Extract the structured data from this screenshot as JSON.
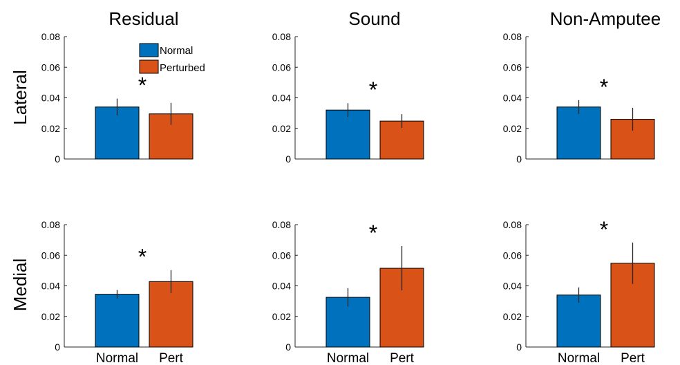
{
  "figure": {
    "column_titles": [
      "Residual",
      "Sound",
      "Non-Amputee"
    ],
    "row_labels": [
      "Lateral",
      "Medial"
    ],
    "legend": {
      "position": "top-left of first panel",
      "entries": [
        "Normal",
        "Perturbed"
      ]
    },
    "colors": {
      "normal": "#0072bd",
      "perturbed": "#d95319",
      "axis": "#262626"
    }
  },
  "chart_data": [
    {
      "type": "bar",
      "panel": "Lateral - Residual",
      "categories": [
        "Normal",
        "Pert"
      ],
      "values": [
        0.034,
        0.0295
      ],
      "error": [
        0.0055,
        0.0072
      ],
      "ylim": [
        0,
        0.08
      ],
      "yticks": [
        "0",
        "0.02",
        "0.04",
        "0.06",
        "0.08"
      ],
      "significance": "*",
      "show_xticklabels": false
    },
    {
      "type": "bar",
      "panel": "Lateral - Sound",
      "categories": [
        "Normal",
        "Pert"
      ],
      "values": [
        0.032,
        0.0248
      ],
      "error": [
        0.0045,
        0.0045
      ],
      "ylim": [
        0,
        0.08
      ],
      "yticks": [
        "0",
        "0.02",
        "0.04",
        "0.06",
        "0.08"
      ],
      "significance": "*",
      "show_xticklabels": false
    },
    {
      "type": "bar",
      "panel": "Lateral - Non-Amputee",
      "categories": [
        "Normal",
        "Pert"
      ],
      "values": [
        0.034,
        0.026
      ],
      "error": [
        0.0045,
        0.0075
      ],
      "ylim": [
        0,
        0.08
      ],
      "yticks": [
        "0",
        "0.02",
        "0.04",
        "0.06",
        "0.08"
      ],
      "significance": "*",
      "show_xticklabels": false
    },
    {
      "type": "bar",
      "panel": "Medial - Residual",
      "categories": [
        "Normal",
        "Pert"
      ],
      "values": [
        0.0345,
        0.0428
      ],
      "error": [
        0.0028,
        0.0075
      ],
      "ylim": [
        0,
        0.08
      ],
      "yticks": [
        "0",
        "0.02",
        "0.04",
        "0.06",
        "0.08"
      ],
      "significance": "*",
      "show_xticklabels": true
    },
    {
      "type": "bar",
      "panel": "Medial - Sound",
      "categories": [
        "Normal",
        "Pert"
      ],
      "values": [
        0.0325,
        0.0515
      ],
      "error": [
        0.006,
        0.0145
      ],
      "ylim": [
        0,
        0.08
      ],
      "yticks": [
        "0",
        "0.02",
        "0.04",
        "0.06",
        "0.08"
      ],
      "significance": "*",
      "show_xticklabels": true
    },
    {
      "type": "bar",
      "panel": "Medial - Non-Amputee",
      "categories": [
        "Normal",
        "Pert"
      ],
      "values": [
        0.034,
        0.0548
      ],
      "error": [
        0.005,
        0.0135
      ],
      "ylim": [
        0,
        0.08
      ],
      "yticks": [
        "0",
        "0.02",
        "0.04",
        "0.06",
        "0.08"
      ],
      "significance": "*",
      "show_xticklabels": true
    }
  ]
}
